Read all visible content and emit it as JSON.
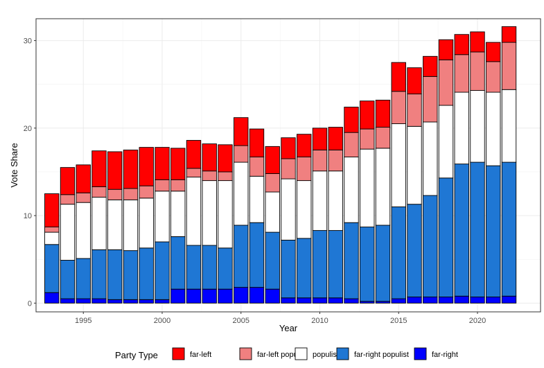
{
  "chart_data": {
    "type": "bar",
    "stacked": true,
    "title": "",
    "xlabel": "Year",
    "ylabel": "Vote Share",
    "xlim": [
      1992,
      2024
    ],
    "ylim": [
      -1,
      32.5
    ],
    "x_ticks": [
      1995,
      2000,
      2005,
      2010,
      2015,
      2020
    ],
    "y_ticks": [
      0,
      10,
      20,
      30
    ],
    "grid": true,
    "legend_position": "bottom",
    "legend_title": "Party Type",
    "x": [
      1993,
      1994,
      1995,
      1996,
      1997,
      1998,
      1999,
      2000,
      2001,
      2002,
      2003,
      2004,
      2005,
      2006,
      2007,
      2008,
      2009,
      2010,
      2011,
      2012,
      2013,
      2014,
      2015,
      2016,
      2017,
      2018,
      2019,
      2020,
      2021,
      2022
    ],
    "series": [
      {
        "name": "far-right",
        "color": "#0000ff",
        "values": [
          1.2,
          0.5,
          0.5,
          0.5,
          0.4,
          0.4,
          0.4,
          0.4,
          1.6,
          1.6,
          1.6,
          1.6,
          1.8,
          1.8,
          1.6,
          0.6,
          0.6,
          0.6,
          0.6,
          0.5,
          0.2,
          0.2,
          0.5,
          0.7,
          0.7,
          0.7,
          0.8,
          0.7,
          0.7,
          0.8
        ]
      },
      {
        "name": "far-right populist",
        "color": "#1f77d4",
        "values": [
          5.5,
          4.4,
          4.6,
          5.6,
          5.7,
          5.6,
          5.9,
          6.6,
          6.0,
          5.0,
          5.0,
          4.7,
          7.1,
          7.4,
          6.5,
          6.6,
          6.8,
          7.7,
          7.7,
          8.7,
          8.5,
          8.7,
          10.5,
          10.6,
          11.6,
          13.6,
          15.1,
          15.4,
          15.0,
          15.3
        ]
      },
      {
        "name": "populist",
        "color": "#ffffff",
        "values": [
          1.4,
          6.4,
          6.4,
          6.0,
          5.7,
          5.8,
          5.7,
          5.8,
          5.2,
          7.8,
          7.4,
          7.7,
          7.2,
          5.3,
          4.6,
          7.0,
          6.6,
          6.8,
          6.8,
          7.5,
          8.9,
          8.8,
          9.5,
          8.9,
          8.4,
          8.3,
          8.2,
          8.2,
          8.4,
          8.3
        ]
      },
      {
        "name": "far-left populist",
        "color": "#f08080",
        "values": [
          0.6,
          1.1,
          1.1,
          1.2,
          1.2,
          1.3,
          1.4,
          1.3,
          1.3,
          1.0,
          1.1,
          1.0,
          1.9,
          2.2,
          2.1,
          2.3,
          2.7,
          2.4,
          2.4,
          2.8,
          2.3,
          2.4,
          3.7,
          3.7,
          5.2,
          5.2,
          4.3,
          4.4,
          3.5,
          5.4
        ]
      },
      {
        "name": "far-left",
        "color": "#ff0000",
        "values": [
          3.8,
          3.1,
          3.2,
          4.1,
          4.3,
          4.4,
          4.4,
          3.7,
          3.6,
          3.2,
          3.1,
          3.1,
          3.2,
          3.2,
          3.1,
          2.4,
          2.6,
          2.5,
          2.6,
          2.9,
          3.2,
          3.1,
          3.3,
          3.0,
          2.3,
          2.3,
          2.3,
          2.3,
          2.2,
          1.8
        ]
      }
    ]
  }
}
